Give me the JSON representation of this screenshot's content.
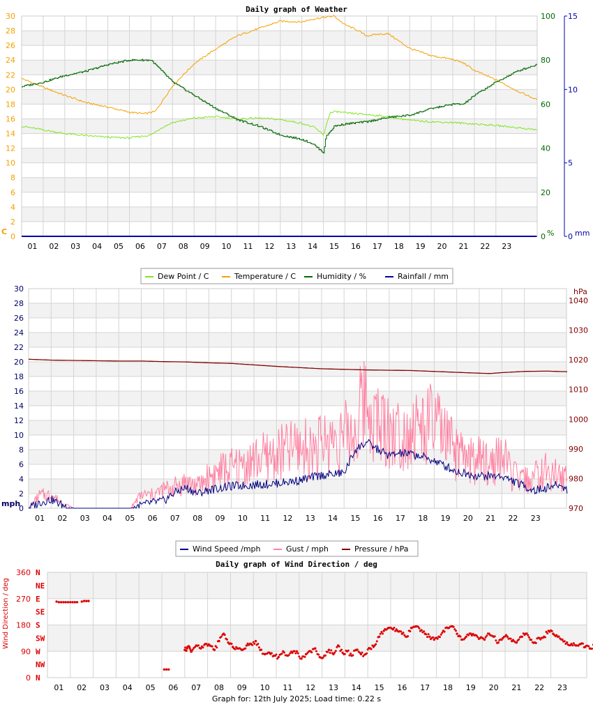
{
  "chart_data": [
    {
      "type": "line",
      "title": "Daily graph of Weather",
      "x_ticks": [
        "01",
        "02",
        "03",
        "04",
        "05",
        "06",
        "07",
        "08",
        "09",
        "10",
        "11",
        "12",
        "13",
        "14",
        "15",
        "16",
        "17",
        "18",
        "19",
        "20",
        "21",
        "22",
        "23"
      ],
      "y_left": {
        "unit": "C",
        "ticks": [
          0,
          2,
          4,
          6,
          8,
          10,
          12,
          14,
          16,
          18,
          20,
          22,
          24,
          26,
          28,
          30
        ],
        "ylim": [
          0,
          30
        ],
        "color": "#f5a000"
      },
      "y_right1": {
        "unit": "%",
        "ticks": [
          0,
          20,
          40,
          60,
          80,
          100
        ],
        "ylim": [
          0,
          100
        ],
        "color": "#006600"
      },
      "y_right2": {
        "unit": "mm",
        "ticks": [
          0,
          5,
          10,
          15
        ],
        "ylim": [
          0,
          15
        ],
        "color": "#0000aa"
      },
      "legend": [
        {
          "label": "Dew Point / C",
          "color": "#7fe51f"
        },
        {
          "label": "Temperature / C",
          "color": "#f5a000"
        },
        {
          "label": "Humidity / %",
          "color": "#006600"
        },
        {
          "label": "Rainfall / mm",
          "color": "#0000aa"
        }
      ],
      "series": [
        {
          "name": "Temperature / C",
          "axis": "left",
          "color": "#f5a000",
          "x": [
            0,
            1,
            2,
            3,
            4,
            5,
            5.7,
            6.2,
            7,
            8,
            9,
            10,
            11,
            12,
            13,
            13.5,
            14,
            14.5,
            15,
            15.5,
            16,
            16.5,
            17,
            18,
            19,
            20,
            20.5,
            21,
            22,
            23,
            23.9
          ],
          "y": [
            21.5,
            20.3,
            19.2,
            18.2,
            17.6,
            16.9,
            16.7,
            17.0,
            20.5,
            23.5,
            25.5,
            27.3,
            28.3,
            29.3,
            29.2,
            29.6,
            29.8,
            30.0,
            28.8,
            28.2,
            27.3,
            27.5,
            27.6,
            25.6,
            24.6,
            24.1,
            23.6,
            22.6,
            21.3,
            19.8,
            18.6
          ]
        },
        {
          "name": "Dew Point / C",
          "axis": "left",
          "color": "#7fe51f",
          "x": [
            0,
            1,
            2,
            3,
            4,
            5,
            6,
            6.5,
            7,
            8,
            9,
            10,
            11,
            12,
            13,
            13.6,
            14,
            14.3,
            14.6,
            15,
            16,
            17,
            18,
            19,
            20,
            21,
            22,
            23,
            23.9
          ],
          "y": [
            15.0,
            14.5,
            14.0,
            13.7,
            13.5,
            13.4,
            13.8,
            14.8,
            15.5,
            16.1,
            16.3,
            16.0,
            16.1,
            15.9,
            15.4,
            14.8,
            13.8,
            16.8,
            17.0,
            16.8,
            16.6,
            16.3,
            15.8,
            15.6,
            15.5,
            15.3,
            15.1,
            14.8,
            14.5
          ]
        },
        {
          "name": "Humidity / %",
          "axis": "right1",
          "color": "#006600",
          "x": [
            0,
            1,
            2,
            3,
            4,
            5,
            6,
            7,
            8,
            9,
            10,
            11,
            12,
            13,
            13.5,
            14,
            14.1,
            14.5,
            15,
            16,
            17,
            18,
            19,
            20,
            20.5,
            21,
            22,
            23,
            23.9
          ],
          "y": [
            68,
            70,
            73,
            75,
            78,
            80,
            80,
            70,
            64,
            58,
            53,
            50,
            46,
            44,
            42,
            38,
            45,
            50,
            51,
            52,
            54,
            55,
            58,
            60,
            60,
            64,
            70,
            75,
            78
          ]
        },
        {
          "name": "Rainfall / mm",
          "axis": "right2",
          "color": "#0000aa",
          "x": [
            0,
            23.9
          ],
          "y": [
            0,
            0
          ]
        }
      ]
    },
    {
      "type": "line",
      "title": "",
      "x_ticks": [
        "01",
        "02",
        "03",
        "04",
        "05",
        "06",
        "07",
        "08",
        "09",
        "10",
        "11",
        "12",
        "13",
        "14",
        "15",
        "16",
        "17",
        "18",
        "19",
        "20",
        "21",
        "22",
        "23"
      ],
      "y_left": {
        "unit": "mph",
        "ticks": [
          0,
          2,
          4,
          6,
          8,
          10,
          12,
          14,
          16,
          18,
          20,
          22,
          24,
          26,
          28,
          30
        ],
        "ylim": [
          0,
          30
        ],
        "color": "#000066"
      },
      "y_right": {
        "unit": "hPa",
        "ticks": [
          970,
          980,
          990,
          1000,
          1010,
          1020,
          1030,
          1040
        ],
        "ylim": [
          970,
          1044
        ],
        "color": "#800000"
      },
      "legend": [
        {
          "label": "Wind Speed /mph",
          "color": "#000080"
        },
        {
          "label": "Gust / mph",
          "color": "#ff7fa0"
        },
        {
          "label": "Pressure / hPa",
          "color": "#800000"
        }
      ],
      "series": [
        {
          "name": "Wind Speed /mph",
          "axis": "left",
          "color": "#000080",
          "x": [
            0,
            0.5,
            1,
            1.5,
            2,
            3,
            4,
            4.5,
            5,
            5.5,
            6,
            6.5,
            7,
            7.5,
            8,
            9,
            10,
            11,
            12,
            13,
            14,
            14.5,
            15,
            15.5,
            16,
            16.5,
            17,
            17.5,
            18,
            19,
            20,
            21,
            22,
            22.5,
            23,
            23.5,
            23.9
          ],
          "y": [
            0,
            0.8,
            1.2,
            0.4,
            0,
            0,
            0,
            0,
            0.4,
            0.8,
            1.0,
            2.2,
            2.8,
            2.0,
            2.5,
            3.0,
            3.2,
            3.4,
            3.8,
            4.5,
            4.8,
            8.0,
            9.0,
            8.0,
            7.2,
            7.5,
            7.4,
            7.0,
            6.5,
            5.0,
            4.4,
            4.4,
            3.0,
            2.4,
            2.8,
            3.2,
            2.6
          ]
        },
        {
          "name": "Gust / mph",
          "axis": "left",
          "color": "#ff7fa0",
          "x": [
            0,
            0.5,
            1,
            1.5,
            2,
            3,
            4,
            4.5,
            5,
            5.5,
            6,
            6.5,
            7,
            7.5,
            8,
            8.5,
            9,
            9.5,
            10,
            10.5,
            11,
            11.5,
            12,
            12.5,
            13,
            13.5,
            14,
            14.5,
            14.8,
            15,
            15.3,
            15.5,
            16,
            16.5,
            17,
            17.5,
            18,
            18.5,
            19,
            19.5,
            20,
            20.5,
            21,
            21.5,
            22,
            22.5,
            23,
            23.5,
            23.9
          ],
          "y": [
            0,
            2.5,
            2.5,
            1.0,
            0,
            0,
            0,
            0,
            2.5,
            2.5,
            3.5,
            4.0,
            5.0,
            4.0,
            6.0,
            7.0,
            7.5,
            8.0,
            9.0,
            9.5,
            10.0,
            11.0,
            11.5,
            11.0,
            12.0,
            13.0,
            13.5,
            14.0,
            19.5,
            21.0,
            17.0,
            16.0,
            15.0,
            14.0,
            15.0,
            15.0,
            16.0,
            13.0,
            10.0,
            9.0,
            9.0,
            8.0,
            10.0,
            6.0,
            5.0,
            6.0,
            7.0,
            6.0,
            5.5
          ]
        },
        {
          "name": "Pressure / hPa",
          "axis": "right",
          "color": "#800000",
          "x": [
            0,
            1,
            2,
            3,
            4,
            5,
            6,
            7,
            8,
            9,
            10,
            11,
            12,
            13,
            14,
            15,
            16,
            17,
            18,
            19,
            20,
            20.5,
            21,
            22,
            23,
            23.9
          ],
          "y": [
            1020.2,
            1019.9,
            1019.8,
            1019.7,
            1019.6,
            1019.6,
            1019.4,
            1019.3,
            1019.0,
            1018.8,
            1018.3,
            1017.8,
            1017.4,
            1017.0,
            1016.8,
            1016.6,
            1016.5,
            1016.4,
            1016.1,
            1015.8,
            1015.5,
            1015.4,
            1015.7,
            1016.1,
            1016.2,
            1016.0
          ]
        }
      ]
    },
    {
      "type": "scatter",
      "title": "Daily graph of Wind Direction / deg",
      "ylabel": "Wind Direction / deg",
      "x_ticks": [
        "01",
        "02",
        "03",
        "04",
        "05",
        "06",
        "07",
        "08",
        "09",
        "10",
        "11",
        "12",
        "13",
        "14",
        "15",
        "16",
        "17",
        "18",
        "19",
        "20",
        "21",
        "22",
        "23"
      ],
      "y_ticks": [
        0,
        90,
        180,
        270,
        360
      ],
      "ylim": [
        0,
        360
      ],
      "compass": [
        "N",
        "NE",
        "E",
        "SE",
        "S",
        "SW",
        "W",
        "NW",
        "N"
      ],
      "color": "#dd0000",
      "series": [
        {
          "name": "Wind Direction / deg",
          "x": [
            0.4,
            0.5,
            0.6,
            0.7,
            0.8,
            0.9,
            1.0,
            1.1,
            1.2,
            1.3,
            1.5,
            1.6,
            1.7,
            1.8,
            5.1,
            5.2,
            5.3,
            6.0,
            6.1,
            6.2,
            6.3,
            6.5,
            6.7,
            6.9,
            7.1,
            7.3,
            7.5,
            7.7,
            7.9,
            8.1,
            8.3,
            8.5,
            8.7,
            8.9,
            9.1,
            9.3,
            9.5,
            9.7,
            9.9,
            10.1,
            10.3,
            10.5,
            10.7,
            10.9,
            11.1,
            11.3,
            11.5,
            11.7,
            11.9,
            12.1,
            12.3,
            12.5,
            12.7,
            12.9,
            13.1,
            13.3,
            13.5,
            13.7,
            13.9,
            14.1,
            14.3,
            14.5,
            14.7,
            14.9,
            15.1,
            15.3,
            15.5,
            15.7,
            15.9,
            16.1,
            16.3,
            16.5,
            16.7,
            16.9,
            17.1,
            17.3,
            17.5,
            17.7,
            17.9,
            18.1,
            18.3,
            18.5,
            18.7,
            18.9,
            19.1,
            19.3,
            19.5,
            19.7,
            19.9,
            20.1,
            20.3,
            20.5,
            20.7,
            20.9,
            21.1,
            21.3,
            21.5,
            21.7,
            21.9,
            22.1,
            22.3,
            22.5,
            22.7,
            22.9,
            23.1,
            23.3,
            23.5,
            23.7,
            23.9
          ],
          "y": [
            260,
            258,
            258,
            258,
            258,
            258,
            258,
            258,
            258,
            258,
            260,
            262,
            262,
            262,
            28,
            28,
            28,
            95,
            100,
            105,
            90,
            110,
            100,
            115,
            110,
            95,
            125,
            150,
            120,
            105,
            100,
            95,
            110,
            115,
            125,
            95,
            80,
            85,
            75,
            70,
            90,
            75,
            85,
            90,
            65,
            80,
            90,
            100,
            70,
            75,
            95,
            80,
            110,
            85,
            90,
            75,
            95,
            80,
            80,
            100,
            110,
            140,
            160,
            170,
            165,
            160,
            150,
            140,
            170,
            175,
            160,
            150,
            140,
            130,
            140,
            160,
            170,
            175,
            150,
            130,
            140,
            150,
            145,
            135,
            130,
            150,
            140,
            120,
            135,
            140,
            125,
            120,
            140,
            150,
            130,
            120,
            135,
            140,
            160,
            150,
            140,
            130,
            120,
            115,
            110,
            115,
            105,
            100,
            110
          ]
        }
      ]
    }
  ],
  "footer": "Graph for: 12th July 2025; Load time: 0.22 s"
}
